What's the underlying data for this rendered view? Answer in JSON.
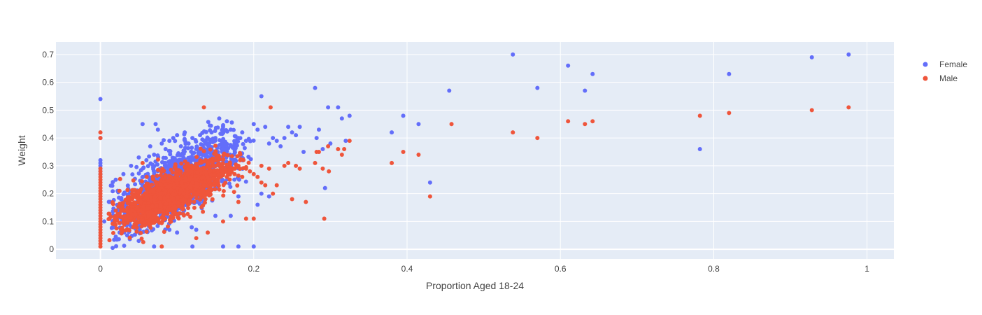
{
  "chart_data": {
    "type": "scatter",
    "xlabel": "Proportion Aged 18-24",
    "ylabel": "Weight",
    "xlim": [
      -0.058,
      1.035
    ],
    "ylim": [
      -0.035,
      0.745
    ],
    "x_ticks": [
      0,
      0.2,
      0.4,
      0.6,
      0.8,
      1
    ],
    "x_tick_labels": [
      "0",
      "0.2",
      "0.4",
      "0.6",
      "0.8",
      "1"
    ],
    "y_ticks": [
      0,
      0.1,
      0.2,
      0.3,
      0.4,
      0.5,
      0.6,
      0.7
    ],
    "y_tick_labels": [
      "0",
      "0.1",
      "0.2",
      "0.3",
      "0.4",
      "0.5",
      "0.6",
      "0.7"
    ],
    "grid": true,
    "plot_background": "#e5ecf6",
    "legend_position": "top-right",
    "series": [
      {
        "name": "Female",
        "color": "#636efa",
        "points": [
          [
            0,
            0.54
          ],
          [
            0,
            0.4
          ],
          [
            0,
            0.32
          ],
          [
            0,
            0.31
          ],
          [
            0,
            0.3
          ],
          [
            0,
            0.29
          ],
          [
            0,
            0.28
          ],
          [
            0,
            0.27
          ],
          [
            0.005,
            0.1
          ],
          [
            0.02,
            0.25
          ],
          [
            0.03,
            0.27
          ],
          [
            0.04,
            0.3
          ],
          [
            0.045,
            0.19
          ],
          [
            0.05,
            0.33
          ],
          [
            0.055,
            0.45
          ],
          [
            0.06,
            0.32
          ],
          [
            0.065,
            0.37
          ],
          [
            0.07,
            0.34
          ],
          [
            0.072,
            0.45
          ],
          [
            0.075,
            0.43
          ],
          [
            0.08,
            0.38
          ],
          [
            0.085,
            0.36
          ],
          [
            0.09,
            0.39
          ],
          [
            0.095,
            0.4
          ],
          [
            0.1,
            0.41
          ],
          [
            0.105,
            0.37
          ],
          [
            0.11,
            0.42
          ],
          [
            0.115,
            0.38
          ],
          [
            0.12,
            0.4
          ],
          [
            0.125,
            0.36
          ],
          [
            0.13,
            0.41
          ],
          [
            0.135,
            0.39
          ],
          [
            0.14,
            0.38
          ],
          [
            0.145,
            0.42
          ],
          [
            0.15,
            0.4
          ],
          [
            0.155,
            0.47
          ],
          [
            0.16,
            0.44
          ],
          [
            0.165,
            0.46
          ],
          [
            0.17,
            0.43
          ],
          [
            0.175,
            0.38
          ],
          [
            0.18,
            0.4
          ],
          [
            0.185,
            0.42
          ],
          [
            0.19,
            0.39
          ],
          [
            0.2,
            0.45
          ],
          [
            0.205,
            0.43
          ],
          [
            0.21,
            0.55
          ],
          [
            0.215,
            0.44
          ],
          [
            0.22,
            0.38
          ],
          [
            0.225,
            0.4
          ],
          [
            0.23,
            0.39
          ],
          [
            0.235,
            0.37
          ],
          [
            0.24,
            0.4
          ],
          [
            0.245,
            0.44
          ],
          [
            0.25,
            0.42
          ],
          [
            0.255,
            0.41
          ],
          [
            0.26,
            0.44
          ],
          [
            0.265,
            0.35
          ],
          [
            0.28,
            0.58
          ],
          [
            0.282,
            0.4
          ],
          [
            0.285,
            0.43
          ],
          [
            0.29,
            0.36
          ],
          [
            0.293,
            0.22
          ],
          [
            0.297,
            0.51
          ],
          [
            0.3,
            0.38
          ],
          [
            0.31,
            0.51
          ],
          [
            0.315,
            0.47
          ],
          [
            0.32,
            0.39
          ],
          [
            0.325,
            0.48
          ],
          [
            0.38,
            0.42
          ],
          [
            0.395,
            0.48
          ],
          [
            0.415,
            0.45
          ],
          [
            0.43,
            0.24
          ],
          [
            0.455,
            0.57
          ],
          [
            0.538,
            0.7
          ],
          [
            0.57,
            0.58
          ],
          [
            0.61,
            0.66
          ],
          [
            0.632,
            0.57
          ],
          [
            0.642,
            0.63
          ],
          [
            0.782,
            0.36
          ],
          [
            0.82,
            0.63
          ],
          [
            0.928,
            0.69
          ],
          [
            0.976,
            0.7
          ],
          [
            0.025,
            0.06
          ],
          [
            0.05,
            0.03
          ],
          [
            0.07,
            0.01
          ],
          [
            0.09,
            0.07
          ],
          [
            0.12,
            0.01
          ],
          [
            0.16,
            0.01
          ],
          [
            0.18,
            0.01
          ],
          [
            0.2,
            0.01
          ],
          [
            0.125,
            0.07
          ],
          [
            0.15,
            0.12
          ],
          [
            0.17,
            0.12
          ],
          [
            0.205,
            0.16
          ],
          [
            0.21,
            0.2
          ],
          [
            0.22,
            0.19
          ],
          [
            0.18,
            0.19
          ],
          [
            0.06,
            0.12
          ],
          [
            0.035,
            0.05
          ],
          [
            0.1,
            0.06
          ]
        ],
        "clusters": [
          {
            "x_mean": 0.1,
            "x_sd": 0.04,
            "y_intercept": 0.08,
            "y_slope": 1.6,
            "y_sd": 0.055,
            "count": 1200
          }
        ]
      },
      {
        "name": "Male",
        "color": "#ef553b",
        "points": [
          [
            0,
            0.42
          ],
          [
            0,
            0.4
          ],
          [
            0,
            0.29
          ],
          [
            0,
            0.28
          ],
          [
            0,
            0.27
          ],
          [
            0,
            0.26
          ],
          [
            0,
            0.25
          ],
          [
            0,
            0.24
          ],
          [
            0,
            0.23
          ],
          [
            0,
            0.22
          ],
          [
            0,
            0.21
          ],
          [
            0,
            0.2
          ],
          [
            0,
            0.19
          ],
          [
            0,
            0.18
          ],
          [
            0,
            0.17
          ],
          [
            0,
            0.16
          ],
          [
            0,
            0.15
          ],
          [
            0,
            0.14
          ],
          [
            0,
            0.13
          ],
          [
            0,
            0.12
          ],
          [
            0,
            0.11
          ],
          [
            0,
            0.1
          ],
          [
            0,
            0.09
          ],
          [
            0,
            0.08
          ],
          [
            0,
            0.07
          ],
          [
            0,
            0.06
          ],
          [
            0,
            0.05
          ],
          [
            0,
            0.04
          ],
          [
            0,
            0.03
          ],
          [
            0,
            0.02
          ],
          [
            0,
            0.01
          ],
          [
            0.135,
            0.51
          ],
          [
            0.222,
            0.51
          ],
          [
            0.055,
            0.31
          ],
          [
            0.05,
            0.21
          ],
          [
            0.08,
            0.01
          ],
          [
            0.125,
            0.04
          ],
          [
            0.14,
            0.06
          ],
          [
            0.16,
            0.1
          ],
          [
            0.19,
            0.11
          ],
          [
            0.2,
            0.11
          ],
          [
            0.18,
            0.17
          ],
          [
            0.21,
            0.24
          ],
          [
            0.215,
            0.23
          ],
          [
            0.225,
            0.2
          ],
          [
            0.23,
            0.23
          ],
          [
            0.24,
            0.3
          ],
          [
            0.245,
            0.31
          ],
          [
            0.25,
            0.18
          ],
          [
            0.255,
            0.3
          ],
          [
            0.26,
            0.29
          ],
          [
            0.268,
            0.17
          ],
          [
            0.28,
            0.31
          ],
          [
            0.282,
            0.35
          ],
          [
            0.285,
            0.35
          ],
          [
            0.29,
            0.29
          ],
          [
            0.292,
            0.11
          ],
          [
            0.297,
            0.37
          ],
          [
            0.298,
            0.28
          ],
          [
            0.31,
            0.36
          ],
          [
            0.315,
            0.34
          ],
          [
            0.318,
            0.36
          ],
          [
            0.325,
            0.39
          ],
          [
            0.38,
            0.31
          ],
          [
            0.395,
            0.35
          ],
          [
            0.415,
            0.34
          ],
          [
            0.43,
            0.19
          ],
          [
            0.458,
            0.45
          ],
          [
            0.538,
            0.42
          ],
          [
            0.57,
            0.4
          ],
          [
            0.61,
            0.46
          ],
          [
            0.632,
            0.45
          ],
          [
            0.642,
            0.46
          ],
          [
            0.782,
            0.48
          ],
          [
            0.82,
            0.49
          ],
          [
            0.928,
            0.5
          ],
          [
            0.976,
            0.51
          ],
          [
            0.17,
            0.28
          ],
          [
            0.18,
            0.3
          ],
          [
            0.19,
            0.29
          ],
          [
            0.2,
            0.27
          ],
          [
            0.21,
            0.3
          ],
          [
            0.22,
            0.29
          ],
          [
            0.165,
            0.26
          ],
          [
            0.175,
            0.27
          ],
          [
            0.185,
            0.26
          ],
          [
            0.195,
            0.28
          ],
          [
            0.205,
            0.26
          ],
          [
            0.16,
            0.29
          ]
        ],
        "clusters": [
          {
            "x_mean": 0.095,
            "x_sd": 0.035,
            "y_intercept": 0.085,
            "y_slope": 1.25,
            "y_sd": 0.038,
            "count": 1500
          }
        ]
      }
    ]
  }
}
